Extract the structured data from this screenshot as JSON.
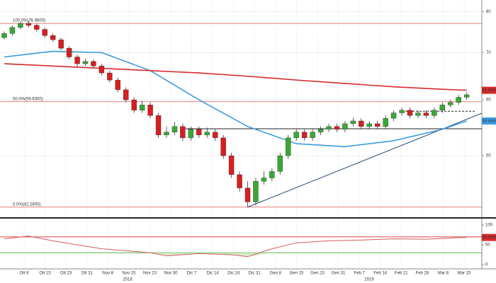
{
  "chart_data": {
    "type": "candlestick",
    "log_scale": true,
    "ylim": [
      41.1,
      83.1
    ],
    "yticks": [
      80,
      70,
      60,
      50
    ],
    "time_labels": [
      "Ott 8",
      "Ott 15",
      "Ott 23",
      "Ott 31",
      "Nov 8",
      "Nov 15",
      "Nov 23",
      "Nov 30",
      "Dic 7",
      "Dic 14",
      "Dic 24",
      "Dic 31",
      "Gen 8",
      "Gen 15",
      "Gen 23",
      "Gen 31",
      "Feb 7",
      "Feb 14",
      "Feb 21",
      "Feb 28",
      "Mar 8",
      "Mar 15"
    ],
    "years": [
      "2018",
      "2019"
    ],
    "up_color": "#3aa832",
    "down_color": "#d81e1e",
    "candles": [
      [
        73.5,
        75,
        73,
        74.5
      ],
      [
        74.5,
        76.5,
        74,
        76
      ],
      [
        76,
        77.5,
        75.5,
        77
      ],
      [
        77,
        77.6,
        76,
        76.5
      ],
      [
        76.5,
        77,
        75,
        75.5
      ],
      [
        75.5,
        76,
        73.5,
        74
      ],
      [
        74,
        74.5,
        72.5,
        73
      ],
      [
        73,
        73.5,
        70.5,
        71
      ],
      [
        71,
        71.5,
        68.5,
        69
      ],
      [
        69,
        69.5,
        66.8,
        67.5
      ],
      [
        67.5,
        68.6,
        67,
        68
      ],
      [
        68,
        68.5,
        66.5,
        67
      ],
      [
        67,
        67.5,
        65,
        65.5
      ],
      [
        65.5,
        66,
        63.5,
        64
      ],
      [
        64,
        64.5,
        61.5,
        62
      ],
      [
        62,
        62.5,
        59.5,
        60
      ],
      [
        60,
        60.5,
        57.5,
        58
      ],
      [
        58,
        59.8,
        57.5,
        59
      ],
      [
        59,
        59.5,
        56.5,
        57
      ],
      [
        57,
        57.5,
        53,
        53.5
      ],
      [
        53.5,
        55,
        53,
        54
      ],
      [
        54,
        55.8,
        53.5,
        55
      ],
      [
        55,
        55.5,
        52.5,
        53
      ],
      [
        53,
        55,
        52.5,
        54.5
      ],
      [
        54.5,
        55,
        53,
        53.5
      ],
      [
        53.5,
        54.8,
        53,
        54
      ],
      [
        54,
        54.5,
        52.5,
        53
      ],
      [
        53,
        53.5,
        49.5,
        50
      ],
      [
        50,
        50.5,
        46.5,
        47
      ],
      [
        47,
        47.5,
        44.5,
        45
      ],
      [
        45,
        46,
        42.28,
        43
      ],
      [
        43,
        46.5,
        42.5,
        46
      ],
      [
        46,
        47.5,
        45.5,
        46.5
      ],
      [
        46.5,
        48,
        46,
        47.5
      ],
      [
        47.5,
        50.5,
        47,
        50
      ],
      [
        50,
        53.5,
        49.5,
        53
      ],
      [
        53,
        54.5,
        52.5,
        54
      ],
      [
        54,
        54.5,
        52.5,
        53
      ],
      [
        53,
        54.5,
        52.5,
        54
      ],
      [
        54,
        55,
        53.5,
        54.5
      ],
      [
        54.5,
        55.5,
        54,
        55
      ],
      [
        55,
        55.5,
        54,
        54.5
      ],
      [
        54.5,
        56,
        54,
        55.5
      ],
      [
        55.5,
        56.6,
        55,
        56
      ],
      [
        56,
        56.5,
        54.5,
        55
      ],
      [
        55,
        56,
        54.5,
        55.5
      ],
      [
        55.5,
        56,
        54.5,
        55
      ],
      [
        55,
        57,
        54.5,
        56.5
      ],
      [
        56.5,
        58,
        56,
        57.5
      ],
      [
        57.5,
        58.5,
        57,
        58
      ],
      [
        58,
        58.5,
        56.5,
        57
      ],
      [
        57,
        58,
        56.5,
        57.5
      ],
      [
        57.5,
        58,
        56.5,
        57
      ],
      [
        57,
        58.5,
        56.5,
        58
      ],
      [
        58,
        59.5,
        57.5,
        59
      ],
      [
        59,
        60,
        58.5,
        59.5
      ],
      [
        59.5,
        61,
        59,
        60.5
      ],
      [
        60.5,
        61.5,
        60,
        61
      ]
    ],
    "moving_averages": [
      {
        "color": "#3d9be0",
        "x": [
          0,
          6,
          12,
          18,
          24,
          30,
          36,
          42,
          48,
          54,
          57
        ],
        "values": [
          69,
          70.3,
          70,
          66,
          60,
          55,
          52,
          51.5,
          52.5,
          54.5,
          56
        ],
        "label": "56.0444"
      },
      {
        "color": "#d62a2a",
        "x": [
          0,
          6,
          12,
          18,
          24,
          30,
          36,
          42,
          48,
          54,
          57
        ],
        "values": [
          67.5,
          67,
          66.5,
          66,
          65.5,
          64.8,
          64,
          63.3,
          62.6,
          62.1,
          61.9
        ],
        "label": "61.9087"
      }
    ],
    "fib_levels": [
      {
        "value": 76.98,
        "label": "100.0%(76.9800)"
      },
      {
        "value": 59.63,
        "label": "50.0%(59.6300)"
      },
      {
        "value": 42.28,
        "label": "0.0%(42.2800)"
      }
    ],
    "resistance": 54.6,
    "dashed_level": 57.8,
    "rsi": {
      "ylim": [
        0,
        100
      ],
      "yticks": [
        100,
        50,
        0
      ],
      "levels": [
        70,
        30
      ],
      "color": "#d65a5a",
      "x": [
        0,
        3,
        6,
        9,
        12,
        15,
        18,
        20,
        24,
        28,
        30,
        33,
        36,
        40,
        44,
        48,
        52,
        56,
        57
      ],
      "values": [
        65,
        72,
        60,
        50,
        40,
        35,
        30,
        22,
        28,
        25,
        20,
        40,
        55,
        60,
        62,
        65,
        64,
        68,
        68.5
      ],
      "label": "68.5308"
    }
  }
}
